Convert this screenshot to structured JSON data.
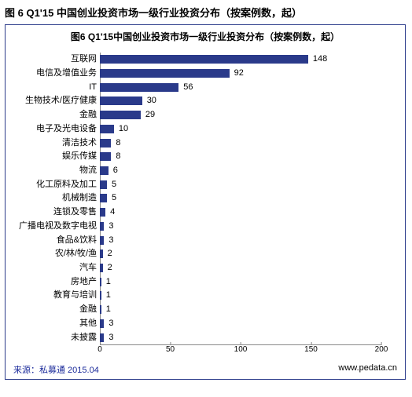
{
  "outer_title": "图 6 Q1'15 中国创业投资市场一级行业投资分布（按案例数，起）",
  "chart": {
    "type": "bar",
    "orientation": "horizontal",
    "inner_title": "图6 Q1'15中国创业投资市场一级行业投资分布（按案例数，起）",
    "bar_color": "#2a3a8a",
    "background_color": "#ffffff",
    "border_color": "#2a3a8a",
    "axis_color": "#888888",
    "label_fontsize": 11,
    "xlim": [
      0,
      200
    ],
    "xtick_step": 50,
    "xticks": [
      0,
      50,
      100,
      150,
      200
    ],
    "categories": [
      "互联网",
      "电信及增值业务",
      "IT",
      "生物技术/医疗健康",
      "金融",
      "电子及光电设备",
      "清洁技术",
      "娱乐传媒",
      "物流",
      "化工原料及加工",
      "机械制造",
      "连锁及零售",
      "广播电视及数字电视",
      "食品&饮料",
      "农/林/牧/渔",
      "汽车",
      "房地产",
      "教育与培训",
      "金融",
      "其他",
      "未披露"
    ],
    "values": [
      148,
      92,
      56,
      30,
      29,
      10,
      8,
      8,
      6,
      5,
      5,
      4,
      3,
      3,
      2,
      2,
      1,
      1,
      1,
      3,
      3
    ]
  },
  "footer": {
    "source": "来源：私募通 2015.04",
    "url": "www.pedata.cn"
  }
}
